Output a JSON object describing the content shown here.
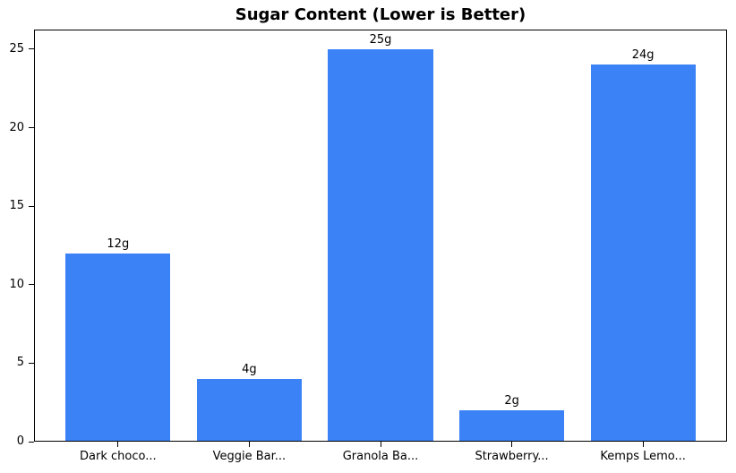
{
  "chart_data": {
    "type": "bar",
    "title": "Sugar Content (Lower is Better)",
    "categories": [
      "Dark choco...",
      "Veggie Bar...",
      "Granola Ba...",
      "Strawberry...",
      "Kemps Lemo..."
    ],
    "values": [
      12,
      4,
      25,
      2,
      24
    ],
    "bar_labels": [
      "12g",
      "4g",
      "25g",
      "2g",
      "24g"
    ],
    "yticks": [
      0,
      5,
      10,
      15,
      20,
      25
    ],
    "ylim": [
      0,
      26.25
    ],
    "xlim": [
      -0.64,
      4.64
    ],
    "bar_width_units": 0.8,
    "bar_color": "#3b82f6",
    "text_color": "#000000",
    "xlabel": "",
    "ylabel": "",
    "grid": false,
    "legend_position": "none"
  }
}
